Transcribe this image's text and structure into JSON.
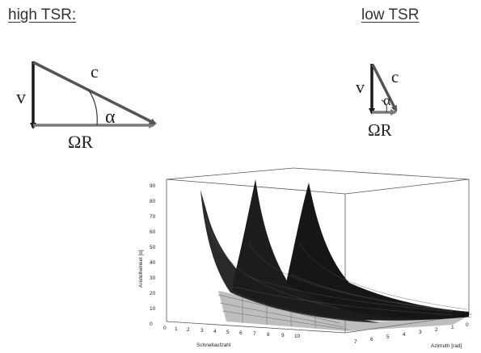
{
  "headings": {
    "high": "high TSR:",
    "low": "low TSR"
  },
  "triangle_high": {
    "v": "v",
    "c": "c",
    "alpha": "α",
    "omega_r": "ΩR"
  },
  "triangle_low": {
    "v": "v",
    "c": "c",
    "alpha": "α",
    "omega_r": "ΩR"
  },
  "plot3d": {
    "z_axis_label": "Anstellwinkel [o]",
    "x_axis_label": "Schnellaufzahl",
    "y_axis_label": "Azimuth [rad]",
    "z_ticks": [
      "0",
      "10",
      "20",
      "30",
      "40",
      "50",
      "60",
      "70",
      "80",
      "90"
    ],
    "x_ticks": [
      "0",
      "1",
      "2",
      "3",
      "4",
      "5",
      "6",
      "7",
      "8",
      "9",
      "10"
    ],
    "y_ticks": [
      "7",
      "6",
      "5",
      "4",
      "3",
      "2",
      "1",
      "0"
    ]
  },
  "colors": {
    "arrow": "#7a7a7a",
    "hypotenuse": "#555555",
    "v_arrow": "#1a1a1a",
    "surface": "#1c1c1c"
  }
}
